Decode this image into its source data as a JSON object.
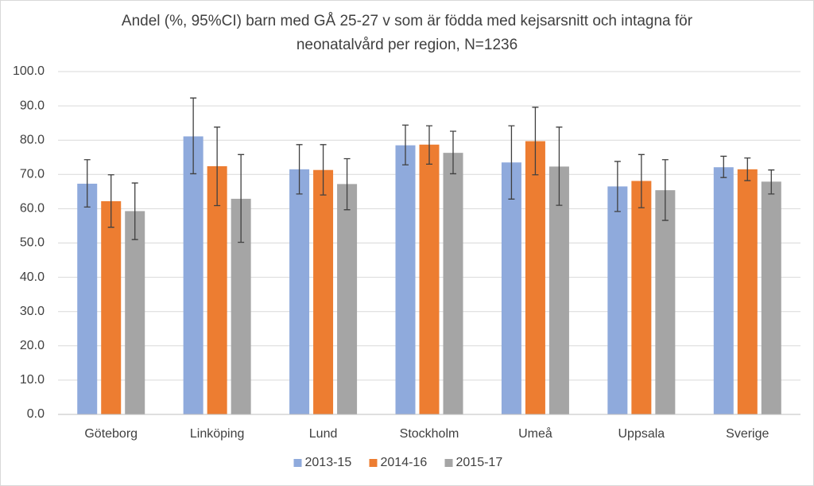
{
  "chart_data": {
    "type": "bar",
    "title": "Andel (%, 95%CI) barn med GÅ 25-27 v som är födda med kejsarsnitt och intagna för neonatalvård per region, N=1236",
    "categories": [
      "Göteborg",
      "Linköping",
      "Lund",
      "Stockholm",
      "Umeå",
      "Uppsala",
      "Sverige"
    ],
    "series": [
      {
        "name": "2013-15",
        "color": "#8faadc",
        "values": [
          67.3,
          81.1,
          71.5,
          78.5,
          73.5,
          66.5,
          72.1
        ],
        "lower": [
          60.5,
          70.2,
          64.3,
          72.8,
          62.8,
          59.2,
          69.1
        ],
        "upper": [
          74.3,
          92.3,
          78.7,
          84.4,
          84.2,
          73.8,
          75.3
        ]
      },
      {
        "name": "2014-16",
        "color": "#ed7d31",
        "values": [
          62.2,
          72.4,
          71.3,
          78.7,
          79.7,
          68.1,
          71.5
        ],
        "lower": [
          54.6,
          60.9,
          64.0,
          73.0,
          69.9,
          60.3,
          68.2
        ],
        "upper": [
          69.9,
          83.8,
          78.7,
          84.2,
          89.6,
          75.8,
          74.8
        ]
      },
      {
        "name": "2015-17",
        "color": "#a5a5a5",
        "values": [
          59.3,
          62.9,
          67.2,
          76.3,
          72.3,
          65.4,
          67.9
        ],
        "lower": [
          51.0,
          50.2,
          59.7,
          70.2,
          61.0,
          56.6,
          64.3
        ],
        "upper": [
          67.5,
          75.8,
          74.6,
          82.6,
          83.8,
          74.3,
          71.3
        ]
      }
    ],
    "ylim": [
      0,
      100
    ],
    "yticks": [
      {
        "value": 0,
        "label": "0.0"
      },
      {
        "value": 10,
        "label": "10.0"
      },
      {
        "value": 20,
        "label": "20.0"
      },
      {
        "value": 30,
        "label": "30.0"
      },
      {
        "value": 40,
        "label": "40.0"
      },
      {
        "value": 50,
        "label": "50.0"
      },
      {
        "value": 60,
        "label": "60.0"
      },
      {
        "value": 70,
        "label": "70.0"
      },
      {
        "value": 80,
        "label": "80.0"
      },
      {
        "value": 90,
        "label": "90.0"
      },
      {
        "value": 100,
        "label": "100.0"
      }
    ],
    "grid": true,
    "legend": "bottom"
  }
}
